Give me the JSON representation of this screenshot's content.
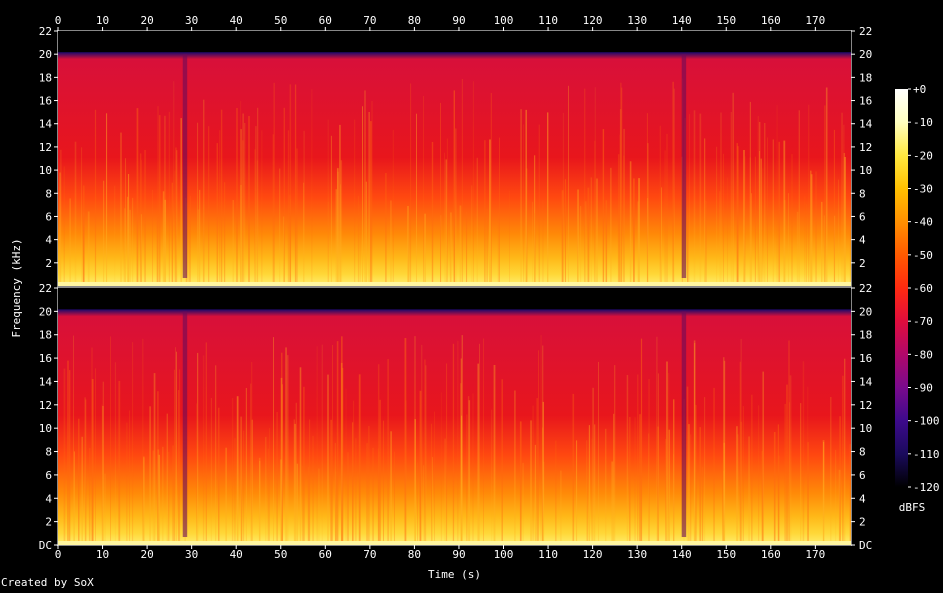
{
  "chart_data": {
    "type": "heatmap",
    "xlabel": "Time (s)",
    "ylabel": "Frequency (kHz)",
    "x_ticks": [
      0,
      10,
      20,
      30,
      40,
      50,
      60,
      70,
      80,
      90,
      100,
      110,
      120,
      130,
      140,
      150,
      160,
      170
    ],
    "xlim": [
      0,
      178
    ],
    "channels": [
      {
        "y_ticks": [
          "22",
          "20",
          "18",
          "16",
          "14",
          "12",
          "10",
          "8",
          "6",
          "4",
          "2"
        ],
        "ylim": [
          0,
          22
        ]
      },
      {
        "y_ticks": [
          "22",
          "20",
          "18",
          "16",
          "14",
          "12",
          "10",
          "8",
          "6",
          "4",
          "2",
          "DC"
        ],
        "ylim": [
          0,
          22
        ]
      }
    ],
    "content_cutoff_khz": 20,
    "colorbar": {
      "label": "dBFS",
      "ticks": [
        "+0",
        "-10",
        "-20",
        "-30",
        "-40",
        "-50",
        "-60",
        "-70",
        "-80",
        "-90",
        "-100",
        "-110",
        "-120"
      ],
      "range": [
        -120,
        0
      ],
      "colors": [
        "#000000",
        "#1a0a5c",
        "#3d0a8c",
        "#7a0a8c",
        "#b0086a",
        "#e00d3c",
        "#ff2a10",
        "#ff5a00",
        "#ff9000",
        "#ffc000",
        "#ffe840",
        "#ffffc0",
        "#ffffff"
      ]
    },
    "quiet_segments_s": [
      [
        28,
        29
      ],
      [
        140,
        141
      ]
    ]
  },
  "credit": "Created by SoX"
}
